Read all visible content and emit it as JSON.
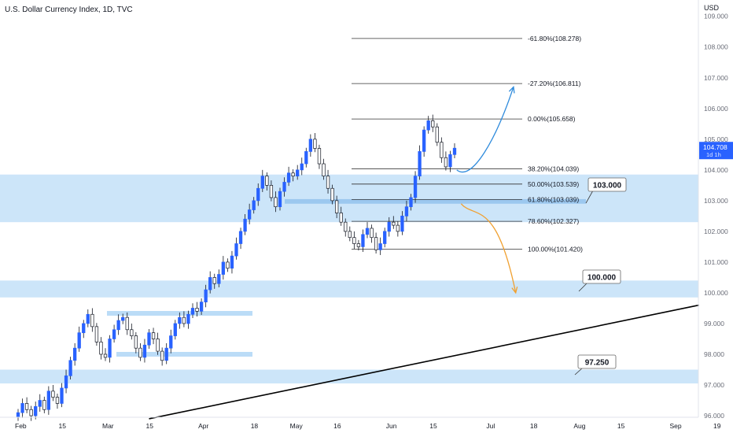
{
  "header": {
    "title": "U.S. Dollar Currency Index, 1D, TVC",
    "currency": "USD"
  },
  "price_tag": {
    "value": "104.708",
    "sub": "1d 1h"
  },
  "chart_data": {
    "type": "candlestick",
    "y_axis": {
      "ylim": [
        95.95,
        109.3
      ],
      "ticks": [
        "109.000",
        "108.000",
        "107.000",
        "106.000",
        "105.000",
        "104.000",
        "103.000",
        "102.000",
        "101.000",
        "100.000",
        "99.000",
        "98.000",
        "97.000",
        "96.000"
      ]
    },
    "x_axis": {
      "ticks": [
        {
          "label": "Feb",
          "t": 0
        },
        {
          "label": "15",
          "t": 10
        },
        {
          "label": "Mar",
          "t": 20
        },
        {
          "label": "15",
          "t": 30
        },
        {
          "label": "Apr",
          "t": 42
        },
        {
          "label": "18",
          "t": 54
        },
        {
          "label": "May",
          "t": 63
        },
        {
          "label": "16",
          "t": 73
        },
        {
          "label": "Jun",
          "t": 85
        },
        {
          "label": "15",
          "t": 95
        },
        {
          "label": "Jul",
          "t": 108
        },
        {
          "label": "18",
          "t": 118
        },
        {
          "label": "Aug",
          "t": 128
        },
        {
          "label": "15",
          "t": 138
        },
        {
          "label": "Sep",
          "t": 150
        },
        {
          "label": "19",
          "t": 160
        }
      ]
    },
    "fib_levels": [
      {
        "label": "-61.80%(108.278)",
        "value": 108.278
      },
      {
        "label": "-27.20%(106.811)",
        "value": 106.811
      },
      {
        "label": "0.00%(105.658)",
        "value": 105.658
      },
      {
        "label": "38.20%(104.039)",
        "value": 104.039
      },
      {
        "label": "50.00%(103.539)",
        "value": 103.539
      },
      {
        "label": "61.80%(103.039)",
        "value": 103.039
      },
      {
        "label": "78.60%(102.327)",
        "value": 102.327
      },
      {
        "label": "100.00%(101.420)",
        "value": 101.42
      }
    ],
    "zones": [
      {
        "label": "103.000",
        "from": 102.3,
        "to": 103.85
      },
      {
        "label": "100.000",
        "from": 99.85,
        "to": 100.4
      },
      {
        "label": "97.250",
        "from": 97.05,
        "to": 97.5
      }
    ],
    "trendline": {
      "t1": 30,
      "v1": 95.9,
      "t2": 156,
      "v2": 99.6
    },
    "closes": [
      96.1,
      96.4,
      96.2,
      96.0,
      96.3,
      96.5,
      96.2,
      96.8,
      96.6,
      96.4,
      96.9,
      97.3,
      97.8,
      98.2,
      98.7,
      99.0,
      99.3,
      98.9,
      98.4,
      98.0,
      97.9,
      98.5,
      98.8,
      99.1,
      99.2,
      98.8,
      98.6,
      98.2,
      97.9,
      98.3,
      98.7,
      98.5,
      98.1,
      97.8,
      98.2,
      98.6,
      99.0,
      99.2,
      99.0,
      99.3,
      99.5,
      99.4,
      99.7,
      100.1,
      100.5,
      100.3,
      100.6,
      101.0,
      100.8,
      101.2,
      101.6,
      102.0,
      102.4,
      102.7,
      103.0,
      103.4,
      103.8,
      103.5,
      103.1,
      102.8,
      103.3,
      103.6,
      103.9,
      103.8,
      104.0,
      104.2,
      104.6,
      105.0,
      104.7,
      104.2,
      103.8,
      103.4,
      103.0,
      102.6,
      102.3,
      102.0,
      101.8,
      101.6,
      101.5,
      101.9,
      102.1,
      101.8,
      101.4,
      101.6,
      102.0,
      102.3,
      102.2,
      102.0,
      102.5,
      102.8,
      103.1,
      103.8,
      104.6,
      105.3,
      105.6,
      105.4,
      104.9,
      104.4,
      104.1,
      104.5,
      104.708
    ],
    "annotations": [
      {
        "type": "arrow",
        "color": "#2f8bdc",
        "points": [
          [
            100.5,
            104.0
          ],
          [
            104.0,
            103.6
          ],
          [
            109.5,
            105.0
          ],
          [
            113.5,
            106.7
          ]
        ]
      },
      {
        "type": "arrow",
        "color": "#f0a030",
        "points": [
          [
            101.5,
            102.9
          ],
          [
            104.5,
            102.4
          ],
          [
            109.5,
            103.1
          ],
          [
            114.0,
            100.0
          ]
        ]
      }
    ]
  }
}
